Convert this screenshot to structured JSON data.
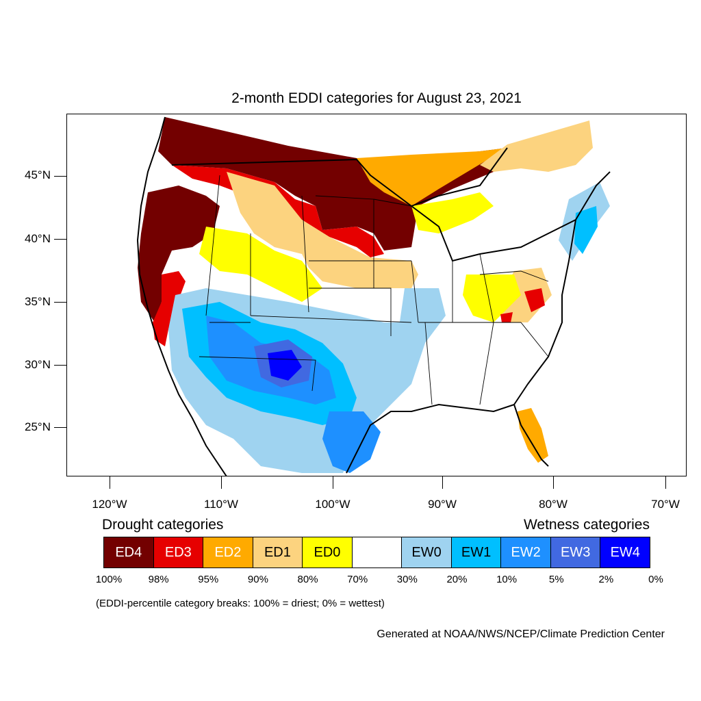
{
  "title": "2-month EDDI categories for August 23, 2021",
  "lat_labels": [
    "45°N",
    "40°N",
    "35°N",
    "30°N",
    "25°N"
  ],
  "lon_labels": [
    "120°W",
    "110°W",
    "100°W",
    "90°W",
    "80°W",
    "70°W"
  ],
  "legend": {
    "drought_heading": "Drought categories",
    "wetness_heading": "Wetness categories",
    "categories": [
      {
        "label": "ED4",
        "color": "#730000",
        "text_color": "#ffffff"
      },
      {
        "label": "ED3",
        "color": "#e60000",
        "text_color": "#ffffff"
      },
      {
        "label": "ED2",
        "color": "#ffaa00",
        "text_color": "#ffffff"
      },
      {
        "label": "ED1",
        "color": "#fcd37f",
        "text_color": "#000000"
      },
      {
        "label": "ED0",
        "color": "#ffff00",
        "text_color": "#000000"
      },
      {
        "label": "",
        "color": "#ffffff",
        "text_color": "#000000"
      },
      {
        "label": "EW0",
        "color": "#9fd3f0",
        "text_color": "#000000"
      },
      {
        "label": "EW1",
        "color": "#00bfff",
        "text_color": "#000000"
      },
      {
        "label": "EW2",
        "color": "#1e90ff",
        "text_color": "#ffffff"
      },
      {
        "label": "EW3",
        "color": "#4169e1",
        "text_color": "#ffffff"
      },
      {
        "label": "EW4",
        "color": "#0000ff",
        "text_color": "#ffffff"
      }
    ],
    "percentiles": [
      "100%",
      "98%",
      "95%",
      "90%",
      "80%",
      "70%",
      "30%",
      "20%",
      "10%",
      "5%",
      "2%",
      "0%"
    ]
  },
  "note": "(EDDI-percentile category breaks: 100% = driest; 0% = wettest)",
  "credit": "Generated at NOAA/NWS/NCEP/Climate Prediction Center"
}
